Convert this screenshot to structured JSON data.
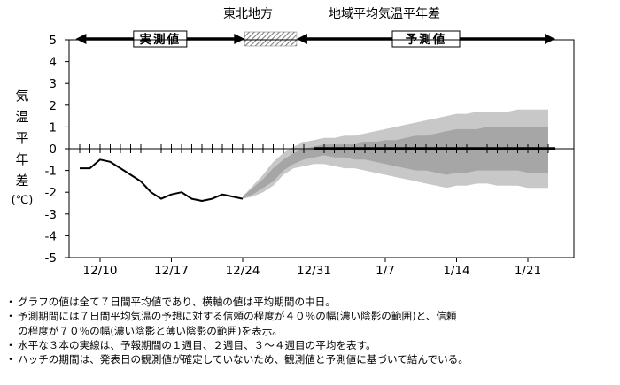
{
  "chart_data": {
    "type": "line",
    "title_region": "東北地方",
    "title_metric": "地域平均気温平年差",
    "ylabel_chars": [
      "気",
      "温",
      "平",
      "年",
      "差",
      "(℃)"
    ],
    "ylim": [
      -5,
      5
    ],
    "yticks": [
      5,
      4,
      3,
      2,
      1,
      0,
      -1,
      -2,
      -3,
      -4,
      -5
    ],
    "x_day_range": [
      0,
      44
    ],
    "x_ticks": [
      {
        "day": 2,
        "label": "12/10"
      },
      {
        "day": 9,
        "label": "12/17"
      },
      {
        "day": 16,
        "label": "12/24"
      },
      {
        "day": 23,
        "label": "12/31"
      },
      {
        "day": 30,
        "label": "1/7"
      },
      {
        "day": 37,
        "label": "1/14"
      },
      {
        "day": 44,
        "label": "1/21"
      }
    ],
    "minor_tick_days": [
      0,
      1,
      2,
      3,
      4,
      5,
      6,
      7,
      8,
      9,
      10,
      11,
      12,
      13,
      14,
      15,
      16,
      17,
      18,
      19,
      20,
      21,
      22,
      23,
      24,
      25,
      26,
      27,
      28,
      29,
      30,
      31,
      32,
      33,
      34,
      35,
      36,
      37,
      38,
      39,
      40,
      41,
      42,
      43,
      44,
      45,
      46
    ],
    "observed_label": "実測値",
    "forecast_label": "予測値",
    "observed_period_days": [
      -0.4,
      16.2
    ],
    "hatch_period_days": [
      16.2,
      21.3
    ],
    "forecast_period_days": [
      21.3,
      46.7
    ],
    "observed": {
      "x": [
        0,
        1,
        2,
        3,
        4,
        5,
        6,
        7,
        8,
        9,
        10,
        11,
        12,
        13,
        14,
        15,
        16
      ],
      "y": [
        -0.9,
        -0.9,
        -0.5,
        -0.6,
        -0.9,
        -1.2,
        -1.5,
        -2.0,
        -2.3,
        -2.1,
        -2.0,
        -2.3,
        -2.4,
        -2.3,
        -2.1,
        -2.2,
        -2.3
      ]
    },
    "outer_band": {
      "x": [
        16,
        17,
        18,
        19,
        20,
        21,
        22,
        23,
        24,
        25,
        26,
        27,
        28,
        29,
        30,
        31,
        32,
        33,
        34,
        35,
        36,
        37,
        38,
        39,
        40,
        41,
        42,
        43,
        44,
        45,
        46
      ],
      "upper": [
        -2.2,
        -1.7,
        -1.2,
        -0.6,
        -0.2,
        0.1,
        0.3,
        0.4,
        0.5,
        0.5,
        0.6,
        0.6,
        0.7,
        0.8,
        0.9,
        1.0,
        1.1,
        1.2,
        1.3,
        1.4,
        1.5,
        1.6,
        1.6,
        1.7,
        1.7,
        1.7,
        1.7,
        1.8,
        1.8,
        1.8,
        1.8
      ],
      "lower": [
        -2.3,
        -2.2,
        -2.0,
        -1.7,
        -1.2,
        -0.9,
        -0.8,
        -0.7,
        -0.7,
        -0.8,
        -0.9,
        -0.9,
        -1.0,
        -1.1,
        -1.2,
        -1.3,
        -1.4,
        -1.5,
        -1.6,
        -1.7,
        -1.8,
        -1.7,
        -1.7,
        -1.6,
        -1.6,
        -1.7,
        -1.7,
        -1.7,
        -1.8,
        -1.8,
        -1.8
      ]
    },
    "inner_band": {
      "x": [
        16,
        17,
        18,
        19,
        20,
        21,
        22,
        23,
        24,
        25,
        26,
        27,
        28,
        29,
        30,
        31,
        32,
        33,
        34,
        35,
        36,
        37,
        38,
        39,
        40,
        41,
        42,
        43,
        44,
        45,
        46
      ],
      "upper": [
        -2.2,
        -1.8,
        -1.4,
        -0.9,
        -0.5,
        -0.2,
        0.0,
        0.1,
        0.2,
        0.2,
        0.2,
        0.2,
        0.3,
        0.3,
        0.4,
        0.4,
        0.5,
        0.6,
        0.6,
        0.7,
        0.8,
        0.9,
        0.9,
        0.9,
        1.0,
        1.0,
        1.0,
        1.0,
        1.0,
        1.0,
        1.0
      ],
      "lower": [
        -2.3,
        -2.1,
        -1.8,
        -1.5,
        -1.0,
        -0.7,
        -0.5,
        -0.4,
        -0.3,
        -0.4,
        -0.4,
        -0.5,
        -0.5,
        -0.6,
        -0.7,
        -0.8,
        -0.9,
        -1.0,
        -1.0,
        -1.1,
        -1.2,
        -1.1,
        -1.1,
        -1.0,
        -1.0,
        -1.0,
        -1.0,
        -1.0,
        -1.1,
        -1.1,
        -1.1
      ]
    },
    "forecast_week_lines": [
      {
        "name": "1週目",
        "x0": 23,
        "x1": 30,
        "y": 0.0
      },
      {
        "name": "2週目",
        "x0": 30,
        "x1": 37,
        "y": 0.0
      },
      {
        "name": "3〜4週目",
        "x0": 37,
        "x1": 46.7,
        "y": 0.0
      }
    ],
    "grid": false,
    "colors": {
      "line": "#000000",
      "outer_band": "#c8c8c8",
      "inner_band": "#a6a6a6",
      "hatch": "#7f7f7f"
    }
  },
  "notes": [
    {
      "lines": [
        "グラフの値は全て７日間平均値であり、横軸の値は平均期間の中日。"
      ]
    },
    {
      "lines": [
        "予測期間には７日間平均気温の予想に対する信頼の程度が４０％の幅(濃い陰影の範囲)と、信頼",
        "の程度が７０％の幅(濃い陰影と薄い陰影の範囲)を表示。"
      ]
    },
    {
      "lines": [
        "水平な３本の実線は、予報期間の１週目、２週目、３〜４週目の平均を表す。"
      ]
    },
    {
      "lines": [
        "ハッチの期間は、発表日の観測値が確定していないため、観測値と予測値に基づいて結んでいる。"
      ]
    }
  ],
  "bullet_char": "・"
}
